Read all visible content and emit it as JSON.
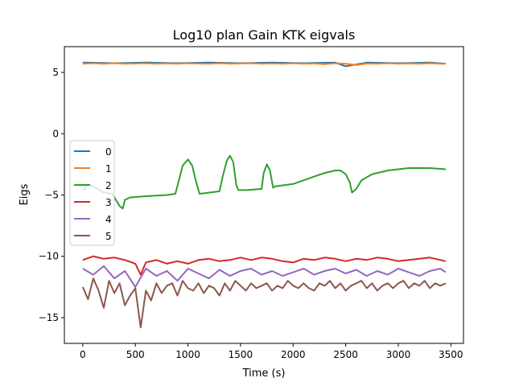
{
  "chart_data": {
    "type": "line",
    "title": "Log10 plan Gain KTK eigvals",
    "xlabel": "Time (s)",
    "ylabel": "Eigs",
    "xlim": [
      -175,
      3620
    ],
    "ylim": [
      -17.1,
      7.1
    ],
    "xticks": [
      0,
      500,
      1000,
      1500,
      2000,
      2500,
      3000,
      3500
    ],
    "yticks": [
      5,
      0,
      -5,
      -10,
      -15
    ],
    "grid": false,
    "legend_position": "center-left",
    "series": [
      {
        "name": "0",
        "color": "#1f77b4",
        "x": [
          0,
          300,
          600,
          900,
          1200,
          1500,
          1800,
          2100,
          2400,
          2500,
          2700,
          3000,
          3300,
          3450
        ],
        "y": [
          5.8,
          5.75,
          5.8,
          5.75,
          5.8,
          5.75,
          5.8,
          5.75,
          5.8,
          5.5,
          5.8,
          5.75,
          5.8,
          5.7
        ]
      },
      {
        "name": "1",
        "color": "#ff7f0e",
        "x": [
          0,
          100,
          200,
          300,
          400,
          500,
          600,
          700,
          800,
          900,
          1000,
          1100,
          1200,
          1300,
          1400,
          1500,
          1600,
          1700,
          1800,
          1900,
          2000,
          2100,
          2200,
          2300,
          2400,
          2500,
          2600,
          2700,
          2800,
          2900,
          3000,
          3100,
          3200,
          3300,
          3400,
          3450
        ],
        "y": [
          5.7,
          5.75,
          5.7,
          5.75,
          5.7,
          5.72,
          5.74,
          5.7,
          5.73,
          5.7,
          5.74,
          5.72,
          5.7,
          5.75,
          5.7,
          5.72,
          5.75,
          5.7,
          5.73,
          5.71,
          5.74,
          5.7,
          5.72,
          5.68,
          5.74,
          5.7,
          5.6,
          5.72,
          5.7,
          5.74,
          5.7,
          5.72,
          5.7,
          5.75,
          5.7,
          5.7
        ]
      },
      {
        "name": "2",
        "color": "#2ca02c",
        "x": [
          0,
          20,
          40,
          100,
          200,
          280,
          350,
          380,
          400,
          450,
          600,
          800,
          880,
          920,
          950,
          1000,
          1040,
          1080,
          1110,
          1300,
          1330,
          1370,
          1400,
          1430,
          1460,
          1480,
          1560,
          1700,
          1720,
          1750,
          1780,
          1810,
          1830,
          2000,
          2100,
          2200,
          2300,
          2400,
          2450,
          2500,
          2540,
          2560,
          2600,
          2650,
          2750,
          2900,
          3100,
          3300,
          3450
        ],
        "y": [
          -4.6,
          -4.5,
          -4.1,
          -4.3,
          -4.8,
          -4.9,
          -5.9,
          -6.1,
          -5.4,
          -5.2,
          -5.1,
          -5.0,
          -4.9,
          -3.6,
          -2.6,
          -2.1,
          -2.6,
          -4.0,
          -4.9,
          -4.7,
          -3.5,
          -2.2,
          -1.8,
          -2.3,
          -4.2,
          -4.6,
          -4.6,
          -4.5,
          -3.2,
          -2.5,
          -3.0,
          -4.4,
          -4.3,
          -4.1,
          -3.8,
          -3.5,
          -3.2,
          -3.0,
          -3.0,
          -3.3,
          -4.0,
          -4.8,
          -4.5,
          -3.8,
          -3.3,
          -3.0,
          -2.8,
          -2.8,
          -2.9
        ]
      },
      {
        "name": "3",
        "color": "#d62728",
        "x": [
          0,
          100,
          200,
          300,
          400,
          500,
          550,
          600,
          700,
          800,
          900,
          1000,
          1100,
          1200,
          1300,
          1400,
          1500,
          1600,
          1700,
          1800,
          1900,
          2000,
          2100,
          2200,
          2300,
          2400,
          2500,
          2600,
          2700,
          2800,
          2900,
          3000,
          3100,
          3200,
          3300,
          3400,
          3450
        ],
        "y": [
          -10.3,
          -10.0,
          -10.2,
          -10.1,
          -10.3,
          -10.6,
          -11.5,
          -10.5,
          -10.3,
          -10.6,
          -10.4,
          -10.6,
          -10.3,
          -10.2,
          -10.4,
          -10.3,
          -10.1,
          -10.3,
          -10.1,
          -10.2,
          -10.4,
          -10.5,
          -10.2,
          -10.3,
          -10.1,
          -10.2,
          -10.4,
          -10.2,
          -10.3,
          -10.1,
          -10.2,
          -10.4,
          -10.3,
          -10.2,
          -10.1,
          -10.3,
          -10.4
        ]
      },
      {
        "name": "4",
        "color": "#9467bd",
        "x": [
          0,
          100,
          200,
          300,
          400,
          500,
          600,
          700,
          800,
          900,
          1000,
          1100,
          1200,
          1300,
          1400,
          1500,
          1600,
          1700,
          1800,
          1900,
          2000,
          2100,
          2200,
          2300,
          2400,
          2500,
          2600,
          2700,
          2800,
          2900,
          3000,
          3100,
          3200,
          3300,
          3400,
          3450
        ],
        "y": [
          -11.0,
          -11.5,
          -10.8,
          -11.8,
          -11.2,
          -12.5,
          -11.0,
          -11.6,
          -11.2,
          -12.0,
          -11.0,
          -11.4,
          -11.8,
          -11.1,
          -11.6,
          -11.2,
          -11.0,
          -11.5,
          -11.2,
          -11.6,
          -11.3,
          -11.0,
          -11.5,
          -11.2,
          -11.0,
          -11.4,
          -11.1,
          -11.6,
          -11.2,
          -11.5,
          -11.0,
          -11.3,
          -11.6,
          -11.2,
          -11.0,
          -11.3
        ]
      },
      {
        "name": "5",
        "color": "#8c564b",
        "x": [
          0,
          50,
          100,
          150,
          200,
          250,
          300,
          350,
          400,
          450,
          500,
          550,
          600,
          650,
          700,
          750,
          800,
          850,
          900,
          950,
          1000,
          1050,
          1100,
          1150,
          1200,
          1250,
          1300,
          1350,
          1400,
          1450,
          1500,
          1550,
          1600,
          1650,
          1700,
          1750,
          1800,
          1850,
          1900,
          1950,
          2000,
          2050,
          2100,
          2150,
          2200,
          2250,
          2300,
          2350,
          2400,
          2450,
          2500,
          2550,
          2600,
          2650,
          2700,
          2750,
          2800,
          2850,
          2900,
          2950,
          3000,
          3050,
          3100,
          3150,
          3200,
          3250,
          3300,
          3350,
          3400,
          3450
        ],
        "y": [
          -12.5,
          -13.5,
          -11.8,
          -12.8,
          -14.2,
          -12.0,
          -13.0,
          -12.2,
          -14.0,
          -13.2,
          -12.6,
          -15.8,
          -12.8,
          -13.6,
          -12.2,
          -13.0,
          -12.4,
          -12.2,
          -13.2,
          -12.0,
          -12.6,
          -12.8,
          -12.2,
          -13.0,
          -12.4,
          -12.6,
          -13.2,
          -12.2,
          -12.8,
          -12.0,
          -12.4,
          -12.8,
          -12.2,
          -12.6,
          -12.4,
          -12.2,
          -12.8,
          -12.4,
          -12.6,
          -12.0,
          -12.4,
          -12.6,
          -12.2,
          -12.6,
          -12.8,
          -12.2,
          -12.4,
          -12.0,
          -12.6,
          -12.2,
          -12.8,
          -12.4,
          -12.2,
          -12.0,
          -12.6,
          -12.2,
          -12.8,
          -12.4,
          -12.2,
          -12.6,
          -12.2,
          -12.0,
          -12.6,
          -12.2,
          -12.4,
          -12.0,
          -12.6,
          -12.2,
          -12.4,
          -12.2
        ]
      }
    ]
  }
}
